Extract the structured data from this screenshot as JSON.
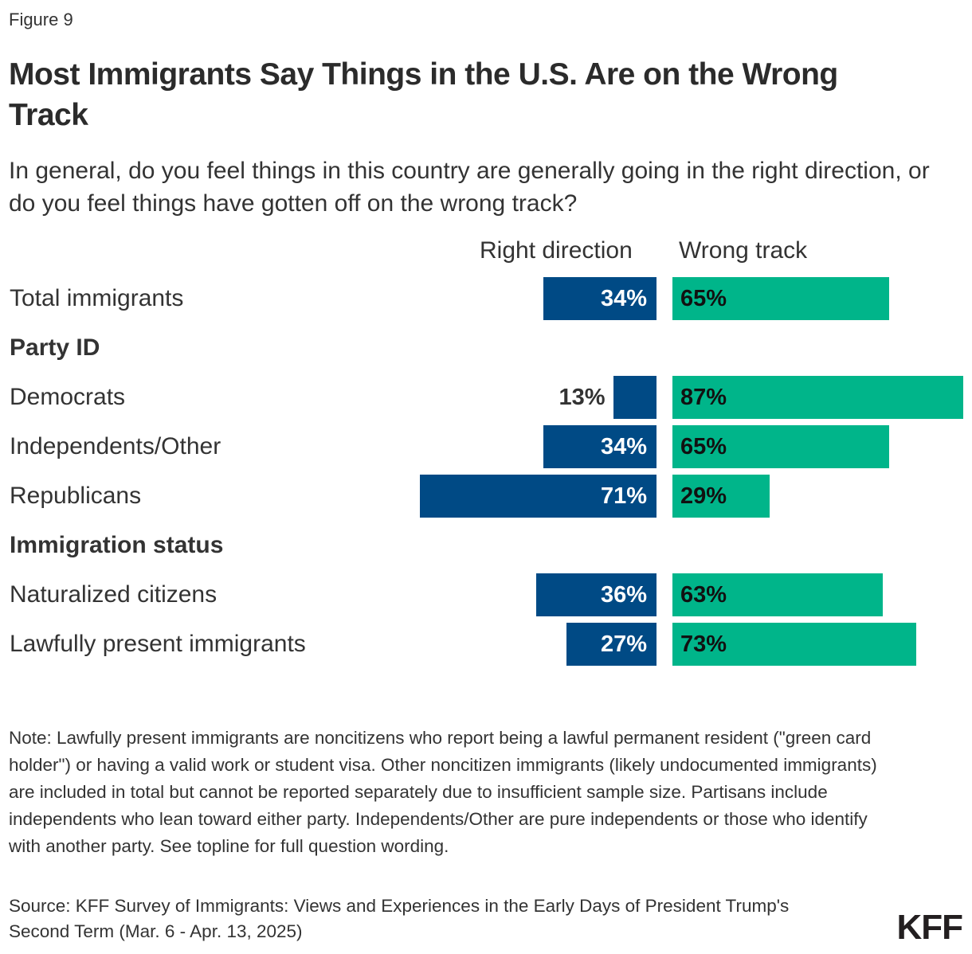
{
  "figure_label": "Figure 9",
  "chart_data": {
    "type": "bar",
    "orientation": "horizontal-diverging",
    "title": "Most Immigrants Say Things in the U.S. Are on the Wrong Track",
    "subtitle": "In general, do you feel things in this country are generally going in the right direction, or do you feel things have gotten off on the wrong track?",
    "series": [
      {
        "name": "Right direction",
        "color": "#004A85"
      },
      {
        "name": "Wrong track",
        "color": "#00B58A"
      }
    ],
    "rows": [
      {
        "label": "Total immigrants",
        "right": 34,
        "wrong": 65
      },
      {
        "section": "Party ID"
      },
      {
        "label": "Democrats",
        "right": 13,
        "wrong": 87
      },
      {
        "label": "Independents/Other",
        "right": 34,
        "wrong": 65
      },
      {
        "label": "Republicans",
        "right": 71,
        "wrong": 29
      },
      {
        "section": "Immigration status"
      },
      {
        "label": "Naturalized citizens",
        "right": 36,
        "wrong": 63
      },
      {
        "label": "Lawfully present immigrants",
        "right": 27,
        "wrong": 73
      }
    ],
    "unit": "%"
  },
  "note": "Note: Lawfully present immigrants are noncitizens who report being a lawful permanent resident (\"green card holder\") or having a valid work or student visa. Other noncitizen immigrants (likely undocumented immigrants) are included in total but cannot be reported separately due to insufficient sample size. Partisans include independents who lean toward either party. Independents/Other are pure independents or those who identify with another party. See topline for full question wording.",
  "source": "Source: KFF Survey of Immigrants: Views and Experiences in the Early Days of President Trump's Second Term (Mar. 6 - Apr. 13, 2025)",
  "logo": "KFF"
}
